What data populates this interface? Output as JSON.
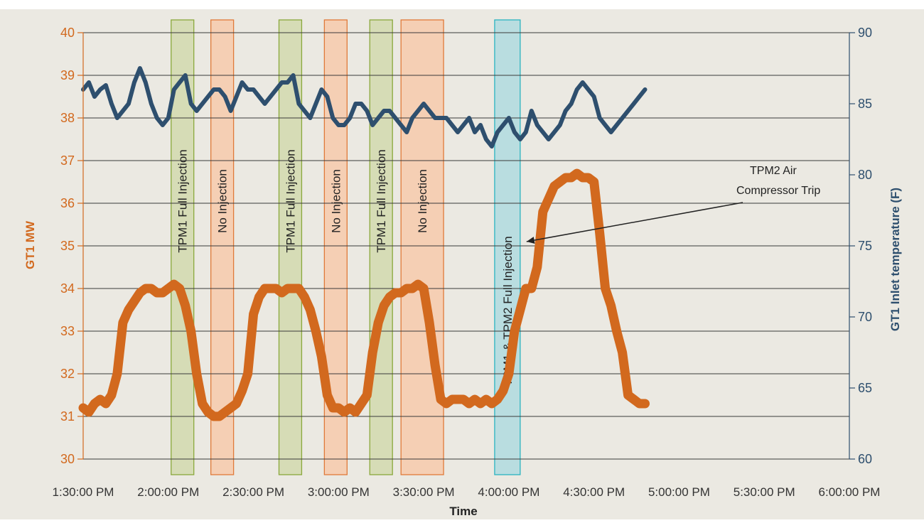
{
  "colors": {
    "background": "#ebe9e2",
    "mw_line": "#d2691e",
    "temp_line": "#2e4f6e",
    "green_band_fill": "#d6dcb6",
    "green_band_stroke": "#8aa83c",
    "orange_band_fill": "#f5cfb4",
    "orange_band_stroke": "#e07a3a",
    "blue_band_fill": "#b9dde0",
    "blue_band_stroke": "#2bb4c0"
  },
  "chart_data": {
    "type": "line",
    "xlabel": "Time",
    "ylabel_left": "GT1 MW",
    "ylabel_right": "GT1 Inlet temperature (F)",
    "x_range_min": [
      90,
      360
    ],
    "ylim_left": [
      30,
      40
    ],
    "ylim_right": [
      60,
      90
    ],
    "grid": true,
    "x_ticks": [
      {
        "min": 90,
        "label": "1:30:00 PM"
      },
      {
        "min": 120,
        "label": "2:00:00 PM"
      },
      {
        "min": 150,
        "label": "2:30:00 PM"
      },
      {
        "min": 180,
        "label": "3:00:00 PM"
      },
      {
        "min": 210,
        "label": "3:30:00 PM"
      },
      {
        "min": 240,
        "label": "4:00:00 PM"
      },
      {
        "min": 270,
        "label": "4:30:00 PM"
      },
      {
        "min": 300,
        "label": "5:00:00 PM"
      },
      {
        "min": 330,
        "label": "5:30:00 PM"
      },
      {
        "min": 360,
        "label": "6:00:00 PM"
      }
    ],
    "y_ticks_left": [
      "30",
      "31",
      "32",
      "33",
      "34",
      "35",
      "36",
      "37",
      "38",
      "39",
      "40"
    ],
    "y_ticks_right": [
      "60",
      "65",
      "70",
      "75",
      "80",
      "85",
      "90"
    ],
    "bands": [
      {
        "start": 121,
        "end": 129,
        "kind": "green",
        "label": "TPM1 Full Injection"
      },
      {
        "start": 135,
        "end": 143,
        "kind": "orange",
        "label": "No Injection"
      },
      {
        "start": 159,
        "end": 167,
        "kind": "green",
        "label": "TPM1 Full Injection"
      },
      {
        "start": 175,
        "end": 183,
        "kind": "orange",
        "label": "No Injection"
      },
      {
        "start": 191,
        "end": 199,
        "kind": "green",
        "label": "TPM1 Full Injection"
      },
      {
        "start": 202,
        "end": 217,
        "kind": "orange",
        "label": "No Injection"
      },
      {
        "start": 235,
        "end": 244,
        "kind": "blue",
        "label": "TPM1 & TPM2 Full Injection"
      }
    ],
    "annotation": {
      "lines": [
        "TPM2 Air",
        "Compressor Trip"
      ],
      "x": 245,
      "y": 35.1
    },
    "series": [
      {
        "name": "GT1 MW",
        "axis": "left",
        "x": [
          90,
          92,
          94,
          96,
          98,
          100,
          102,
          104,
          106,
          108,
          110,
          112,
          114,
          116,
          118,
          120,
          122,
          124,
          126,
          128,
          130,
          132,
          134,
          136,
          138,
          140,
          142,
          144,
          146,
          148,
          150,
          152,
          154,
          156,
          158,
          160,
          162,
          164,
          166,
          168,
          170,
          172,
          174,
          176,
          178,
          180,
          182,
          184,
          186,
          188,
          190,
          192,
          194,
          196,
          198,
          200,
          202,
          204,
          206,
          208,
          210,
          212,
          214,
          216,
          218,
          220,
          222,
          224,
          226,
          228,
          230,
          232,
          234,
          236,
          238,
          240,
          242,
          244,
          246,
          248,
          250,
          252,
          254,
          256,
          258,
          260,
          262,
          264,
          266,
          268,
          270,
          272,
          274,
          276,
          278,
          280,
          282,
          284,
          286,
          288
        ],
        "values": [
          31.2,
          31.1,
          31.3,
          31.4,
          31.3,
          31.5,
          32.0,
          33.2,
          33.5,
          33.7,
          33.9,
          34.0,
          34.0,
          33.9,
          33.9,
          34.0,
          34.1,
          34.0,
          33.6,
          33.0,
          32.0,
          31.3,
          31.1,
          31.0,
          31.0,
          31.1,
          31.2,
          31.3,
          31.6,
          32.0,
          33.4,
          33.8,
          34.0,
          34.0,
          34.0,
          33.9,
          34.0,
          34.0,
          34.0,
          33.8,
          33.5,
          33.0,
          32.4,
          31.5,
          31.2,
          31.2,
          31.1,
          31.2,
          31.1,
          31.3,
          31.5,
          32.5,
          33.2,
          33.6,
          33.8,
          33.9,
          33.9,
          34.0,
          34.0,
          34.1,
          34.0,
          33.2,
          32.2,
          31.4,
          31.3,
          31.4,
          31.4,
          31.4,
          31.3,
          31.4,
          31.3,
          31.4,
          31.3,
          31.4,
          31.6,
          32.0,
          33.0,
          33.5,
          34.0,
          34.0,
          34.5,
          35.8,
          36.1,
          36.4,
          36.5,
          36.6,
          36.6,
          36.7,
          36.6,
          36.6,
          36.5,
          35.3,
          34.0,
          33.6,
          33.0,
          32.5,
          31.5,
          31.4,
          31.3,
          31.3
        ],
        "color": "#d2691e"
      },
      {
        "name": "GT1 Inlet temperature (F)",
        "axis": "right",
        "x": [
          90,
          92,
          94,
          96,
          98,
          100,
          102,
          104,
          106,
          108,
          110,
          112,
          114,
          116,
          118,
          120,
          122,
          124,
          126,
          128,
          130,
          132,
          134,
          136,
          138,
          140,
          142,
          144,
          146,
          148,
          150,
          152,
          154,
          156,
          158,
          160,
          162,
          164,
          166,
          168,
          170,
          172,
          174,
          176,
          178,
          180,
          182,
          184,
          186,
          188,
          190,
          192,
          194,
          196,
          198,
          200,
          202,
          204,
          206,
          208,
          210,
          212,
          214,
          216,
          218,
          220,
          222,
          224,
          226,
          228,
          230,
          232,
          234,
          236,
          238,
          240,
          242,
          244,
          246,
          248,
          250,
          252,
          254,
          256,
          258,
          260,
          262,
          264,
          266,
          268,
          270,
          272,
          274,
          276,
          278,
          280,
          282,
          284,
          286,
          288
        ],
        "values": [
          86.0,
          86.5,
          85.5,
          86.0,
          86.3,
          85.0,
          84.0,
          84.5,
          85.0,
          86.5,
          87.5,
          86.5,
          85.0,
          84.0,
          83.5,
          84.0,
          86.0,
          86.5,
          87.0,
          85.0,
          84.5,
          85.0,
          85.5,
          86.0,
          86.0,
          85.5,
          84.5,
          85.5,
          86.5,
          86.0,
          86.0,
          85.5,
          85.0,
          85.5,
          86.0,
          86.5,
          86.5,
          87.0,
          85.0,
          84.5,
          84.0,
          85.0,
          86.0,
          85.5,
          84.0,
          83.5,
          83.5,
          84.0,
          85.0,
          85.0,
          84.5,
          83.5,
          84.0,
          84.5,
          84.5,
          84.0,
          83.5,
          83.0,
          84.0,
          84.5,
          85.0,
          84.5,
          84.0,
          84.0,
          84.0,
          83.5,
          83.0,
          83.5,
          84.0,
          83.0,
          83.5,
          82.5,
          82.0,
          83.0,
          83.5,
          84.0,
          83.0,
          82.5,
          83.0,
          84.5,
          83.5,
          83.0,
          82.5,
          83.0,
          83.5,
          84.5,
          85.0,
          86.0,
          86.5,
          86.0,
          85.5,
          84.0,
          83.5,
          83.0,
          83.5,
          84.0,
          84.5,
          85.0,
          85.5,
          86.0
        ],
        "color": "#2e4f6e"
      }
    ]
  }
}
